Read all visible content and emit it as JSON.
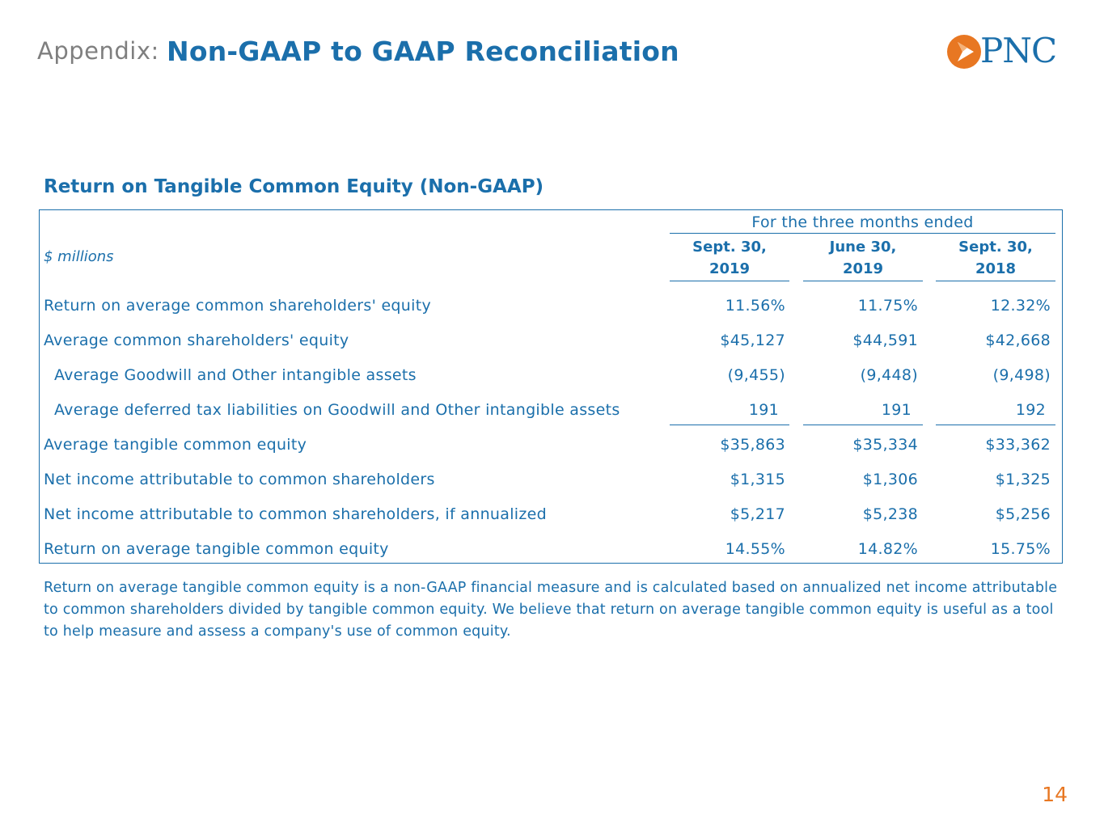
{
  "header": {
    "prefix": "Appendix:",
    "title": "Non-GAAP to GAAP Reconciliation",
    "logo_text": "PNC",
    "brand_blue": "#1b6fab",
    "brand_orange": "#e87722"
  },
  "section": {
    "title": "Return on Tangible Common Equity (Non-GAAP)"
  },
  "table": {
    "period_header": "For the three months ended",
    "units": "$ millions",
    "columns": [
      {
        "line1": "Sept. 30,",
        "line2": "2019"
      },
      {
        "line1": "June 30,",
        "line2": "2019"
      },
      {
        "line1": "Sept. 30,",
        "line2": "2018"
      }
    ],
    "rows": [
      {
        "label": "Return on average common shareholders' equity",
        "values": [
          "11.56%",
          "11.75%",
          "12.32%"
        ]
      },
      {
        "label": "Average common shareholders' equity",
        "values": [
          "$45,127",
          "$44,591",
          "$42,668"
        ]
      },
      {
        "label": "Average Goodwill and Other intangible assets",
        "values": [
          "(9,455)",
          "(9,448)",
          "(9,498)"
        ]
      },
      {
        "label": "Average deferred tax liabilities on Goodwill and Other intangible assets",
        "values": [
          "191",
          "191",
          "192"
        ]
      },
      {
        "label": "Average tangible common equity",
        "values": [
          "$35,863",
          "$35,334",
          "$33,362"
        ]
      },
      {
        "label": "Net income attributable to common shareholders",
        "values": [
          "$1,315",
          "$1,306",
          "$1,325"
        ]
      },
      {
        "label": "Net income attributable to common shareholders, if annualized",
        "values": [
          "$5,217",
          "$5,238",
          "$5,256"
        ]
      },
      {
        "label": "Return on average tangible common equity",
        "values": [
          "14.55%",
          "14.82%",
          "15.75%"
        ]
      }
    ]
  },
  "footnote": "Return on average tangible common equity is a non-GAAP financial measure and is calculated based on annualized net income attributable to common shareholders divided by tangible common equity. We believe that return on average tangible common equity is useful as a tool to help measure and assess a company's use of common equity.",
  "page_number": "14"
}
